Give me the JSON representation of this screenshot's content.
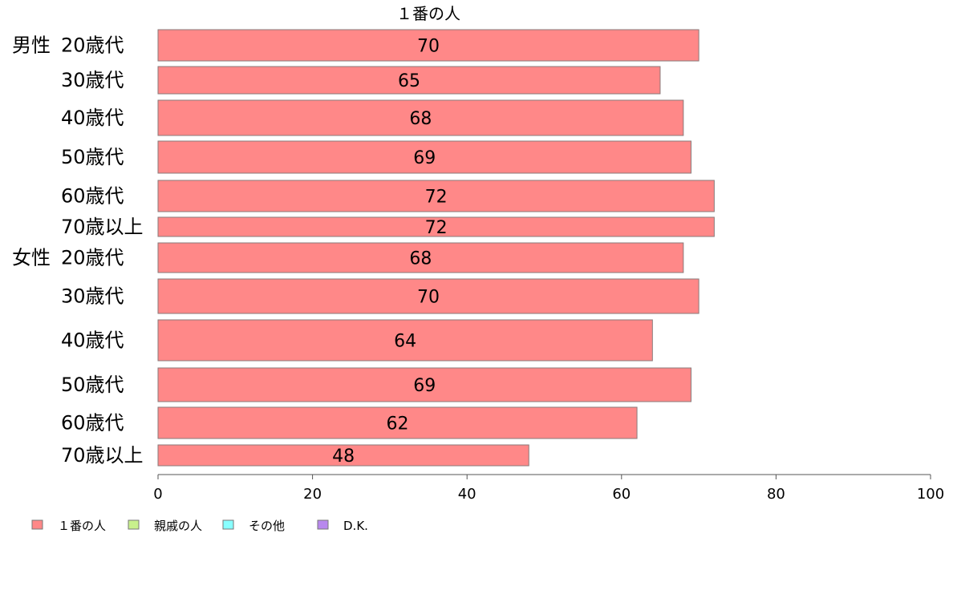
{
  "chart_data": {
    "type": "bar",
    "orientation": "horizontal",
    "title": "１番の人",
    "groups": [
      {
        "label": "男性",
        "rows": [
          {
            "category": "20歳代",
            "values": [
              70,
              0,
              0,
              0
            ],
            "label": "70"
          },
          {
            "category": "30歳代",
            "values": [
              65,
              0,
              0,
              0
            ],
            "label": "65"
          },
          {
            "category": "40歳代",
            "values": [
              68,
              0,
              0,
              0
            ],
            "label": "68"
          },
          {
            "category": "50歳代",
            "values": [
              69,
              0,
              0,
              0
            ],
            "label": "69"
          },
          {
            "category": "60歳代",
            "values": [
              72,
              0,
              0,
              0
            ],
            "label": "72"
          },
          {
            "category": "70歳以上",
            "values": [
              72,
              0,
              0,
              0
            ],
            "label": "72"
          }
        ]
      },
      {
        "label": "女性",
        "rows": [
          {
            "category": "20歳代",
            "values": [
              68,
              0,
              0,
              0
            ],
            "label": "68"
          },
          {
            "category": "30歳代",
            "values": [
              70,
              0,
              0,
              0
            ],
            "label": "70"
          },
          {
            "category": "40歳代",
            "values": [
              64,
              0,
              0,
              0
            ],
            "label": "64"
          },
          {
            "category": "50歳代",
            "values": [
              69,
              0,
              0,
              0
            ],
            "label": "69"
          },
          {
            "category": "60歳代",
            "values": [
              62,
              0,
              0,
              0
            ],
            "label": "62"
          },
          {
            "category": "70歳以上",
            "values": [
              48,
              0,
              0,
              0
            ],
            "label": "48"
          }
        ]
      }
    ],
    "series": [
      {
        "name": "１番の人",
        "color": "#ff8888"
      },
      {
        "name": "親戚の人",
        "color": "#c8f08c"
      },
      {
        "name": "その他",
        "color": "#88ffff"
      },
      {
        "name": "D.K.",
        "color": "#b888ee"
      }
    ],
    "xlim": [
      0,
      100
    ],
    "xticks": [
      0,
      20,
      40,
      60,
      80,
      100
    ],
    "legend_position": "bottom-left",
    "grid": false
  }
}
